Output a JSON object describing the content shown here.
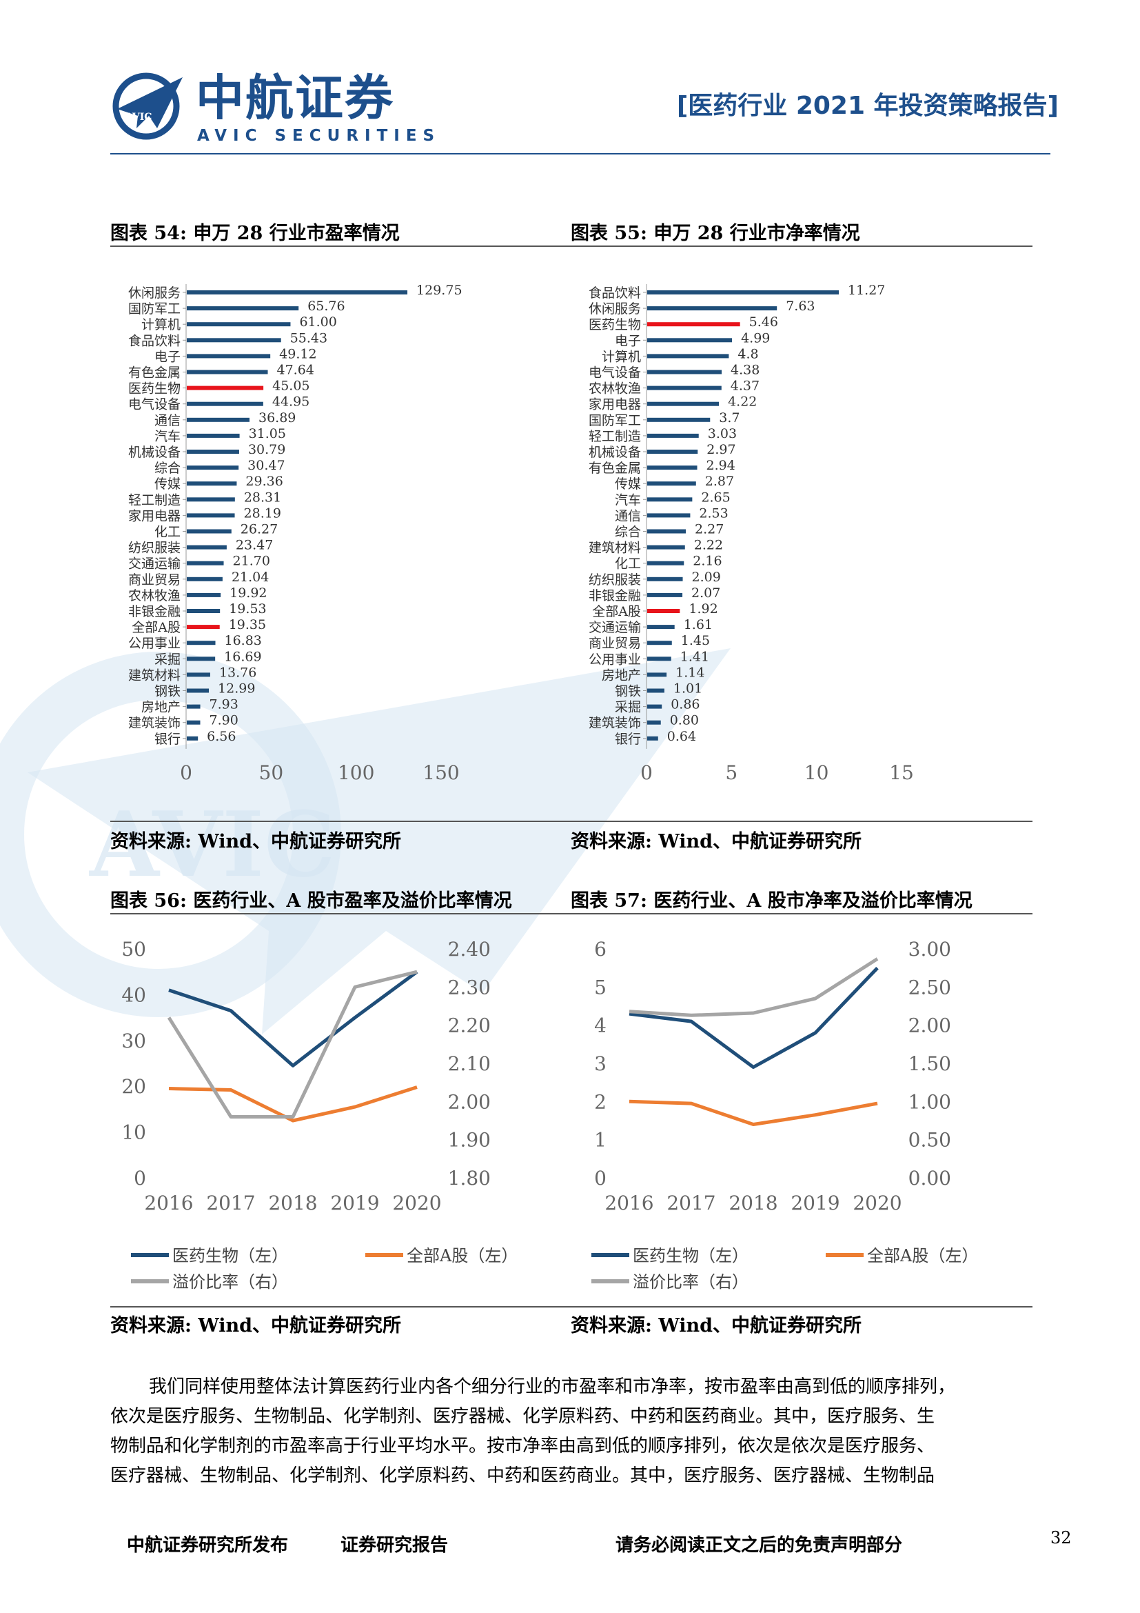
{
  "header": {
    "logo_cn": "中航证券",
    "logo_en": "AVIC SECURITIES",
    "logo_badge": "AVIC",
    "report_title": "[医药行业 2021 年投资策略报告]"
  },
  "watermark": {
    "text": "AVIC"
  },
  "captions": {
    "fig54": "图表 54: 申万 28 行业市盈率情况",
    "fig55": "图表 55: 申万 28 行业市净率情况",
    "fig56": "图表 56: 医药行业、A 股市盈率及溢价比率情况",
    "fig57": "图表 57: 医药行业、A 股市净率及溢价比率情况"
  },
  "sources": {
    "fig54": "资料来源: Wind、中航证券研究所",
    "fig55": "资料来源: Wind、中航证券研究所",
    "fig56": "资料来源: Wind、中航证券研究所",
    "fig57": "资料来源: Wind、中航证券研究所"
  },
  "chart_data": [
    {
      "id": "fig54",
      "type": "bar",
      "orientation": "horizontal",
      "categories": [
        "休闲服务",
        "国防军工",
        "计算机",
        "食品饮料",
        "电子",
        "有色金属",
        "医药生物",
        "电气设备",
        "通信",
        "汽车",
        "机械设备",
        "综合",
        "传媒",
        "轻工制造",
        "家用电器",
        "化工",
        "纺织服装",
        "交通运输",
        "商业贸易",
        "农林牧渔",
        "非银金融",
        "全部A股",
        "公用事业",
        "采掘",
        "建筑材料",
        "钢铁",
        "房地产",
        "建筑装饰",
        "银行"
      ],
      "values": [
        129.75,
        65.76,
        61.0,
        55.43,
        49.12,
        47.64,
        45.05,
        44.95,
        36.89,
        31.05,
        30.79,
        30.47,
        29.36,
        28.31,
        28.19,
        26.27,
        23.47,
        21.7,
        21.04,
        19.92,
        19.53,
        19.35,
        16.83,
        16.69,
        13.76,
        12.99,
        7.93,
        7.9,
        6.56
      ],
      "value_labels": [
        "129.75",
        "65.76",
        "61.00",
        "55.43",
        "49.12",
        "47.64",
        "45.05",
        "44.95",
        "36.89",
        "31.05",
        "30.79",
        "30.47",
        "29.36",
        "28.31",
        "28.19",
        "26.27",
        "23.47",
        "21.70",
        "21.04",
        "19.92",
        "19.53",
        "19.35",
        "16.83",
        "16.69",
        "13.76",
        "12.99",
        "7.93",
        "7.90",
        "6.56"
      ],
      "highlight": [
        "医药生物",
        "全部A股"
      ],
      "xlim": [
        0,
        150
      ],
      "xticks": [
        "0",
        "50",
        "100",
        "150"
      ],
      "colors": {
        "bar": "#1f4e79",
        "highlight": "#e8141b"
      }
    },
    {
      "id": "fig55",
      "type": "bar",
      "orientation": "horizontal",
      "categories": [
        "食品饮料",
        "休闲服务",
        "医药生物",
        "电子",
        "计算机",
        "电气设备",
        "农林牧渔",
        "家用电器",
        "国防军工",
        "轻工制造",
        "机械设备",
        "有色金属",
        "传媒",
        "汽车",
        "通信",
        "综合",
        "建筑材料",
        "化工",
        "纺织服装",
        "非银金融",
        "全部A股",
        "交通运输",
        "商业贸易",
        "公用事业",
        "房地产",
        "钢铁",
        "采掘",
        "建筑装饰",
        "银行"
      ],
      "values": [
        11.27,
        7.63,
        5.46,
        4.99,
        4.8,
        4.38,
        4.37,
        4.22,
        3.7,
        3.03,
        2.97,
        2.94,
        2.87,
        2.65,
        2.53,
        2.27,
        2.22,
        2.16,
        2.09,
        2.07,
        1.92,
        1.61,
        1.45,
        1.41,
        1.14,
        1.01,
        0.86,
        0.8,
        0.64
      ],
      "value_labels": [
        "11.27",
        "7.63",
        "5.46",
        "4.99",
        "4.8",
        "4.38",
        "4.37",
        "4.22",
        "3.7",
        "3.03",
        "2.97",
        "2.94",
        "2.87",
        "2.65",
        "2.53",
        "2.27",
        "2.22",
        "2.16",
        "2.09",
        "2.07",
        "1.92",
        "1.61",
        "1.45",
        "1.41",
        "1.14",
        "1.01",
        "0.86",
        "0.80",
        "0.64"
      ],
      "highlight": [
        "医药生物",
        "全部A股"
      ],
      "xlim": [
        0,
        15
      ],
      "xticks": [
        "0",
        "5",
        "10",
        "15"
      ],
      "colors": {
        "bar": "#1f4e79",
        "highlight": "#e8141b"
      }
    },
    {
      "id": "fig56",
      "type": "line",
      "x": [
        "2016",
        "2017",
        "2018",
        "2019",
        "2020"
      ],
      "series": [
        {
          "name": "医药生物（左）",
          "axis": "left",
          "values": [
            41,
            36.5,
            24.5,
            35,
            45
          ],
          "color": "#1f4e79"
        },
        {
          "name": "全部A股（左）",
          "axis": "left",
          "values": [
            19.5,
            19.2,
            12.5,
            15.5,
            19.8
          ],
          "color": "#ed7d31"
        },
        {
          "name": "溢价比率（右）",
          "axis": "right",
          "values": [
            2.22,
            1.96,
            1.96,
            2.3,
            2.34
          ],
          "color": "#a5a5a5"
        }
      ],
      "ylim_left": [
        0,
        50
      ],
      "yticks_left": [
        "0",
        "10",
        "20",
        "30",
        "40",
        "50"
      ],
      "ylim_right": [
        1.8,
        2.4
      ],
      "yticks_right": [
        "1.80",
        "1.90",
        "2.00",
        "2.10",
        "2.20",
        "2.30",
        "2.40"
      ]
    },
    {
      "id": "fig57",
      "type": "line",
      "x": [
        "2016",
        "2017",
        "2018",
        "2019",
        "2020"
      ],
      "series": [
        {
          "name": "医药生物（左）",
          "axis": "left",
          "values": [
            4.3,
            4.1,
            2.9,
            3.8,
            5.5
          ],
          "color": "#1f4e79"
        },
        {
          "name": "全部A股（左）",
          "axis": "left",
          "values": [
            2.0,
            1.95,
            1.4,
            1.65,
            1.95
          ],
          "color": "#ed7d31"
        },
        {
          "name": "溢价比率（右）",
          "axis": "right",
          "values": [
            2.18,
            2.13,
            2.16,
            2.35,
            2.87
          ],
          "color": "#a5a5a5"
        }
      ],
      "ylim_left": [
        0,
        6
      ],
      "yticks_left": [
        "0",
        "1",
        "2",
        "3",
        "4",
        "5",
        "6"
      ],
      "ylim_right": [
        0,
        3
      ],
      "yticks_right": [
        "0.00",
        "0.50",
        "1.00",
        "1.50",
        "2.00",
        "2.50",
        "3.00"
      ]
    }
  ],
  "paragraph": [
    "我们同样使用整体法计算医药行业内各个细分行业的市盈率和市净率，按市盈率由高到低的顺序排列，",
    "依次是医疗服务、生物制品、化学制剂、医疗器械、化学原料药、中药和医药商业。其中，医疗服务、生",
    "物制品和化学制剂的市盈率高于行业平均水平。按市净率由高到低的顺序排列，依次是依次是医疗服务、",
    "医疗器械、生物制品、化学制剂、化学原料药、中药和医药商业。其中，医疗服务、医疗器械、生物制品"
  ],
  "footer": {
    "left1": "中航证券研究所发布",
    "left2": "证券研究报告",
    "center": "请务必阅读正文之后的免责声明部分",
    "page": "32"
  }
}
